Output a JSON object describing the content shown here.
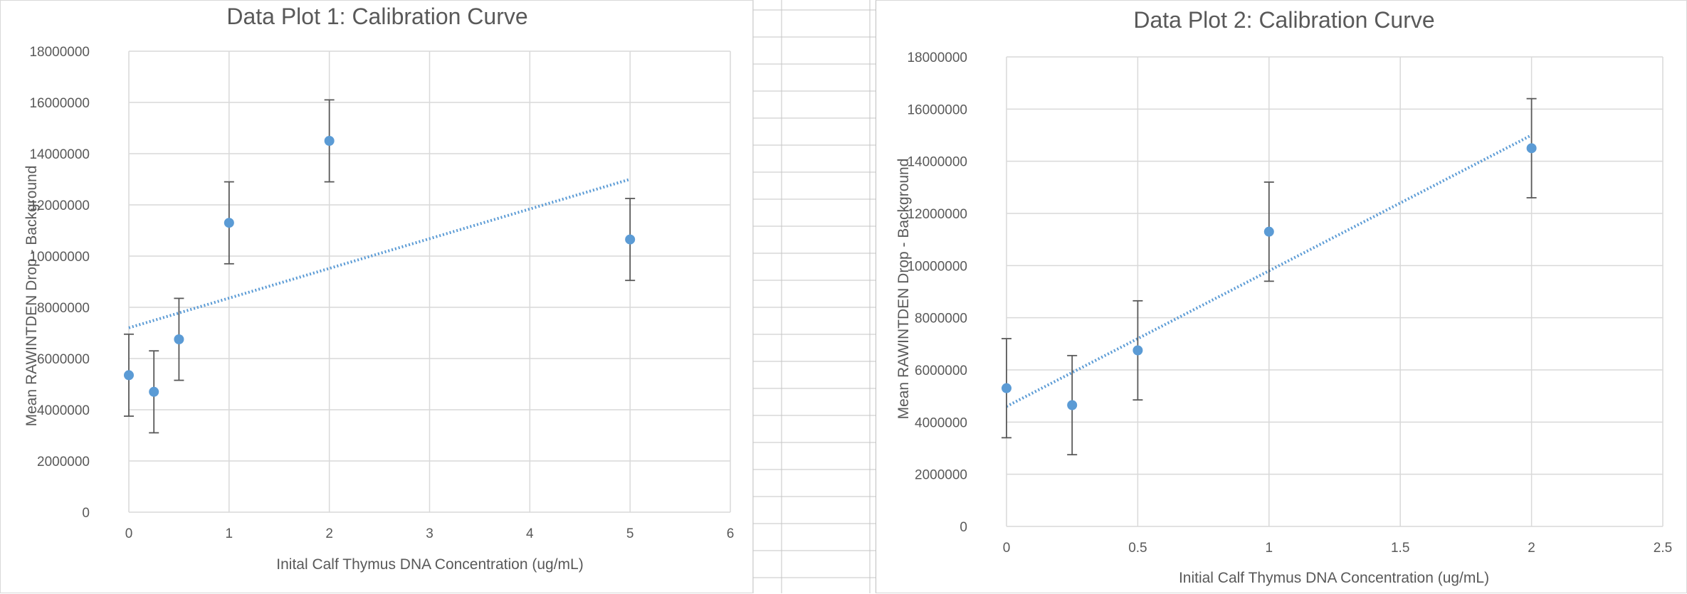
{
  "colors": {
    "marker": "#5b9bd5",
    "trendline": "#5b9bd5",
    "error_bar": "#595959",
    "grid": "#d9d9d9",
    "sheet_grid": "#c6c6c6"
  },
  "chart_data": [
    {
      "type": "scatter",
      "title": "Data Plot 1: Calibration Curve",
      "xlabel": "Inital Calf Thymus DNA Concentration (ug/mL)",
      "ylabel": "Mean RAWINTDEN Drop - Background",
      "xlim": [
        0,
        6
      ],
      "ylim": [
        0,
        18000000
      ],
      "x_ticks": [
        0,
        1,
        2,
        3,
        4,
        5,
        6
      ],
      "x_tick_labels": [
        "0",
        "1",
        "2",
        "3",
        "4",
        "5",
        "6"
      ],
      "y_ticks": [
        0,
        2000000,
        4000000,
        6000000,
        8000000,
        10000000,
        12000000,
        14000000,
        16000000,
        18000000
      ],
      "y_tick_labels": [
        "0",
        "2000000",
        "4000000",
        "6000000",
        "8000000",
        "10000000",
        "12000000",
        "14000000",
        "16000000",
        "18000000"
      ],
      "grid": true,
      "points": [
        {
          "x": 0,
          "y": 5350000,
          "err": 1600000
        },
        {
          "x": 0.25,
          "y": 4700000,
          "err": 1600000
        },
        {
          "x": 0.5,
          "y": 6750000,
          "err": 1600000
        },
        {
          "x": 1,
          "y": 11300000,
          "err": 1600000
        },
        {
          "x": 2,
          "y": 14500000,
          "err": 1600000
        },
        {
          "x": 5,
          "y": 10650000,
          "err": 1600000
        }
      ],
      "trendline": {
        "type": "linear",
        "x": [
          0,
          5
        ],
        "y": [
          7200000,
          13000000
        ]
      }
    },
    {
      "type": "scatter",
      "title": "Data Plot 2: Calibration Curve",
      "xlabel": "Initial  Calf Thymus DNA Concentration (ug/mL)",
      "ylabel": "Mean RAWINTDEN Drop - Background",
      "xlim": [
        0,
        2.5
      ],
      "ylim": [
        0,
        18000000
      ],
      "x_ticks": [
        0,
        0.5,
        1,
        1.5,
        2,
        2.5
      ],
      "x_tick_labels": [
        "0",
        "0.5",
        "1",
        "1.5",
        "2",
        "2.5"
      ],
      "y_ticks": [
        0,
        2000000,
        4000000,
        6000000,
        8000000,
        10000000,
        12000000,
        14000000,
        16000000,
        18000000
      ],
      "y_tick_labels": [
        "0",
        "2000000",
        "4000000",
        "6000000",
        "8000000",
        "10000000",
        "12000000",
        "14000000",
        "16000000",
        "18000000"
      ],
      "grid": true,
      "points": [
        {
          "x": 0,
          "y": 5300000,
          "err": 1900000
        },
        {
          "x": 0.25,
          "y": 4650000,
          "err": 1900000
        },
        {
          "x": 0.5,
          "y": 6750000,
          "err": 1900000
        },
        {
          "x": 1,
          "y": 11300000,
          "err": 1900000
        },
        {
          "x": 2,
          "y": 14500000,
          "err": 1900000
        }
      ],
      "trendline": {
        "type": "linear",
        "x": [
          0,
          2
        ],
        "y": [
          4600000,
          15000000
        ]
      }
    }
  ]
}
